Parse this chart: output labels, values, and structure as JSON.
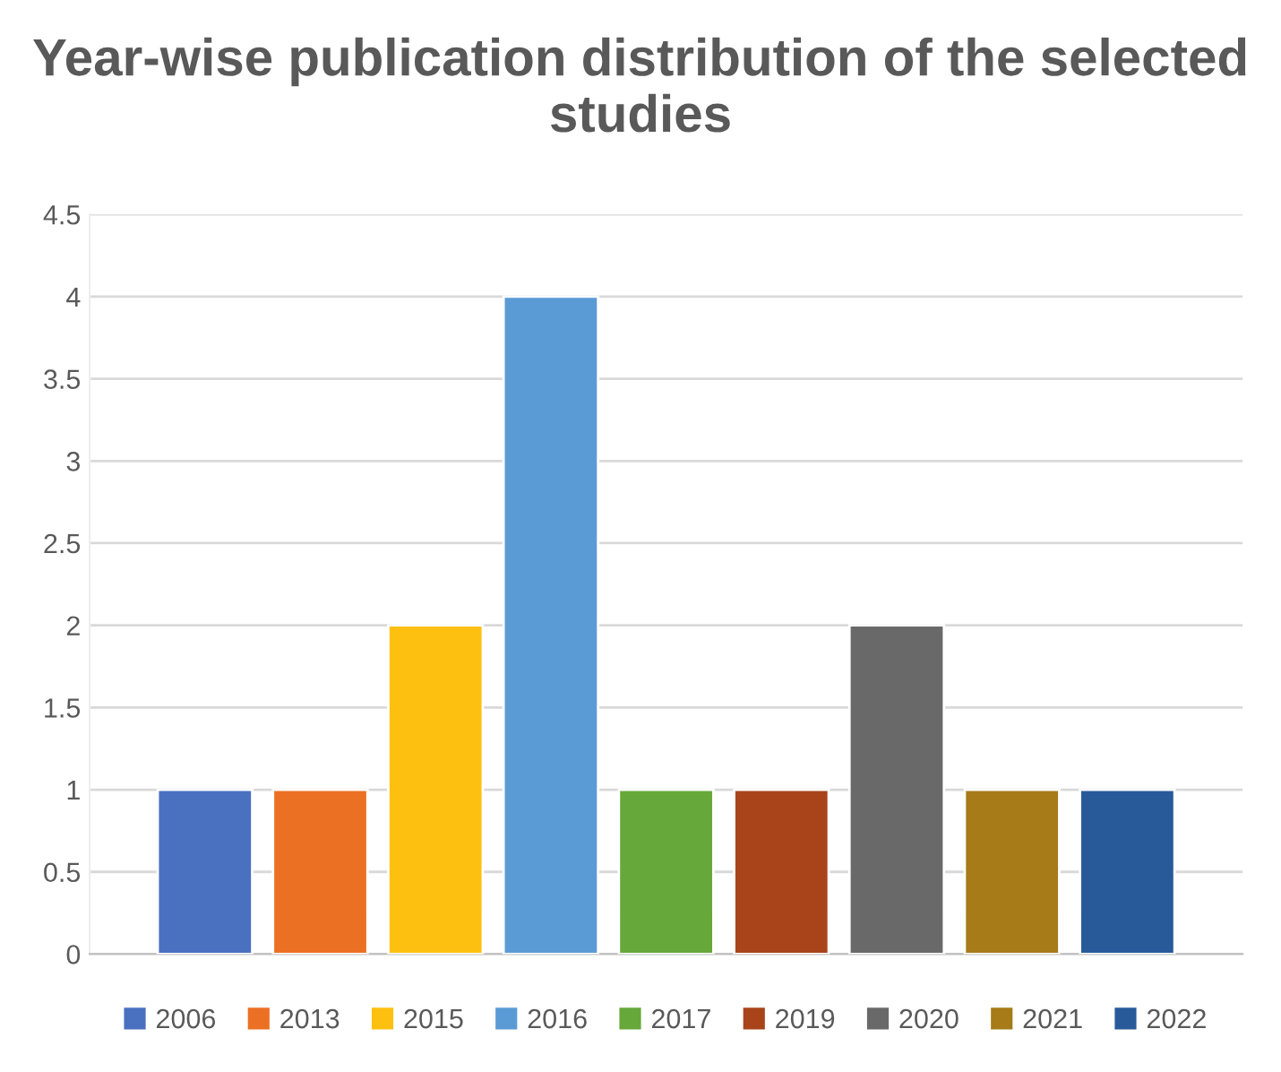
{
  "chart_data": {
    "type": "bar",
    "title": "Year-wise publication distribution of the selected studies",
    "categories": [
      null
    ],
    "series": [
      {
        "name": "2006",
        "color": "#4a70c0",
        "values": [
          1
        ]
      },
      {
        "name": "2013",
        "color": "#ec7024",
        "values": [
          1
        ]
      },
      {
        "name": "2015",
        "color": "#fec010",
        "values": [
          2
        ]
      },
      {
        "name": "2016",
        "color": "#5b9bd5",
        "values": [
          4
        ]
      },
      {
        "name": "2017",
        "color": "#67a83a",
        "values": [
          1
        ]
      },
      {
        "name": "2019",
        "color": "#a9441a",
        "values": [
          1
        ]
      },
      {
        "name": "2020",
        "color": "#696969",
        "values": [
          2
        ]
      },
      {
        "name": "2021",
        "color": "#a67b18",
        "values": [
          1
        ]
      },
      {
        "name": "2022",
        "color": "#285a9a",
        "values": [
          1
        ]
      }
    ],
    "ylim": [
      0,
      4.5
    ],
    "yticks": [
      0,
      0.5,
      1,
      1.5,
      2,
      2.5,
      3,
      3.5,
      4,
      4.5
    ],
    "grid": "y",
    "legend": "bottom"
  }
}
